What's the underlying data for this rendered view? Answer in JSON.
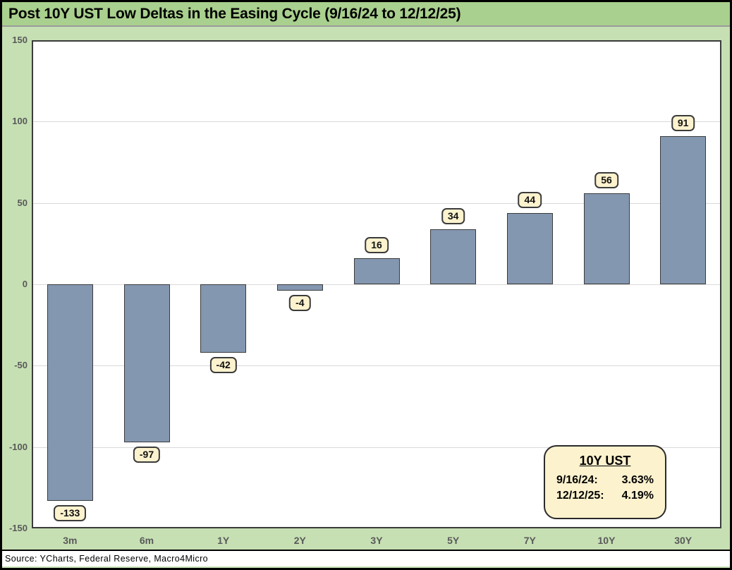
{
  "window": {
    "title": "Post 10Y UST Low Deltas in the Easing Cycle (9/16/24 to 12/12/25)",
    "source_line": "Source: YCharts, Federal Reserve, Macro4Micro"
  },
  "chart_data": {
    "type": "bar",
    "title": "Post 10Y UST Low Deltas in the Easing Cycle (9/16/24 to 12/12/25)",
    "categories": [
      "3m",
      "6m",
      "1Y",
      "2Y",
      "3Y",
      "5Y",
      "7Y",
      "10Y",
      "30Y"
    ],
    "values": [
      -133,
      -97,
      -42,
      -4,
      16,
      34,
      44,
      56,
      91
    ],
    "ylim": [
      -150,
      150
    ],
    "yticks": [
      150,
      100,
      50,
      0,
      -50,
      -100,
      -150
    ],
    "grid": true,
    "data_labels": [
      "-133",
      "-97",
      "-42",
      "-4",
      "16",
      "34",
      "44",
      "56",
      "91"
    ],
    "legend": "none"
  },
  "annotation": {
    "title": "10Y UST",
    "rows": [
      {
        "date": "9/16/24:",
        "value": "3.63%"
      },
      {
        "date": "12/12/25:",
        "value": "4.19%"
      }
    ]
  },
  "colors": {
    "title_bar_bg": "#A9D08E",
    "chart_bg": "#C6E0B4",
    "plot_bg": "#FFFFFF",
    "gridline": "#D9D9D9",
    "axis_text": "#595959",
    "bar_fill": "#8497B0",
    "bar_border": "#3B3B3B",
    "callout_bg": "#FCF2CE",
    "callout_border": "#2B2B2B"
  }
}
